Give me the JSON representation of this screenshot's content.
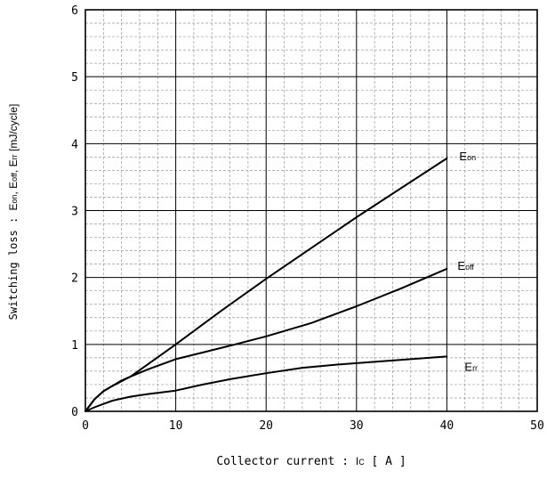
{
  "chart_data": {
    "type": "line",
    "xlabel_prefix": "Collector current : ",
    "xlabel_symbol": "I",
    "xlabel_symbol_sub": "C",
    "xlabel_suffix": "  [ A ]",
    "ylabel_prefix": "Switching loss  :  ",
    "ylabel_quantities": "E",
    "ylabel_unit": " [mJ/cycle]",
    "xlim": [
      0,
      50
    ],
    "ylim": [
      0,
      6
    ],
    "x_ticks": [
      "0",
      "10",
      "20",
      "30",
      "40",
      "50"
    ],
    "y_ticks": [
      "0",
      "1",
      "2",
      "3",
      "4",
      "5",
      "6"
    ],
    "grid": true,
    "series": [
      {
        "name": "Eon",
        "label_main": "E",
        "label_sub": "on",
        "x": [
          0,
          1,
          2,
          3,
          4,
          5,
          7,
          10,
          15,
          20,
          25,
          30,
          35,
          40
        ],
        "y": [
          0,
          0.18,
          0.3,
          0.38,
          0.46,
          0.52,
          0.71,
          1.0,
          1.5,
          1.98,
          2.44,
          2.9,
          3.34,
          3.78
        ]
      },
      {
        "name": "Eoff",
        "label_main": "E",
        "label_sub": "off",
        "x": [
          0,
          1,
          2,
          3,
          4,
          5,
          7,
          10,
          13,
          16,
          20,
          25,
          30,
          35,
          40
        ],
        "y": [
          0,
          0.18,
          0.3,
          0.38,
          0.45,
          0.52,
          0.63,
          0.78,
          0.88,
          0.98,
          1.12,
          1.32,
          1.57,
          1.84,
          2.13
        ]
      },
      {
        "name": "Err",
        "label_main": "E",
        "label_sub": "rr",
        "x": [
          0,
          1,
          2,
          3,
          5,
          7,
          10,
          13,
          16,
          20,
          24,
          28,
          32,
          36,
          40
        ],
        "y": [
          0,
          0.06,
          0.11,
          0.16,
          0.22,
          0.26,
          0.31,
          0.4,
          0.48,
          0.57,
          0.65,
          0.7,
          0.74,
          0.78,
          0.82
        ]
      }
    ]
  }
}
